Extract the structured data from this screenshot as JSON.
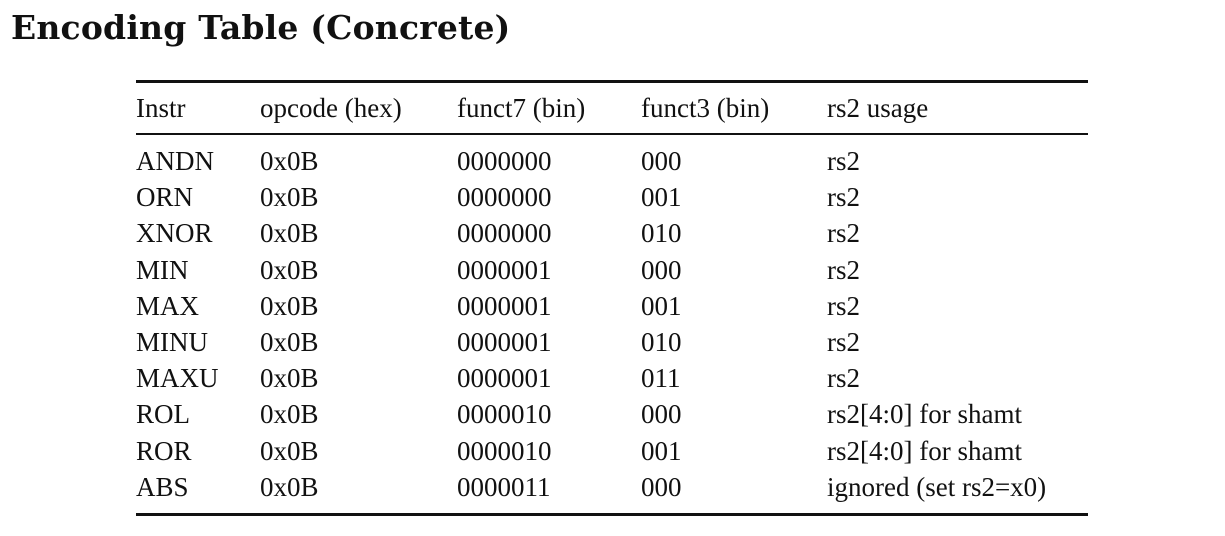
{
  "heading": "Encoding Table (Concrete)",
  "table": {
    "headers": [
      "Instr",
      "opcode (hex)",
      "funct7 (bin)",
      "funct3 (bin)",
      "rs2 usage"
    ],
    "rows": [
      [
        "ANDN",
        "0x0B",
        "0000000",
        "000",
        "rs2"
      ],
      [
        "ORN",
        "0x0B",
        "0000000",
        "001",
        "rs2"
      ],
      [
        "XNOR",
        "0x0B",
        "0000000",
        "010",
        "rs2"
      ],
      [
        "MIN",
        "0x0B",
        "0000001",
        "000",
        "rs2"
      ],
      [
        "MAX",
        "0x0B",
        "0000001",
        "001",
        "rs2"
      ],
      [
        "MINU",
        "0x0B",
        "0000001",
        "010",
        "rs2"
      ],
      [
        "MAXU",
        "0x0B",
        "0000001",
        "011",
        "rs2"
      ],
      [
        "ROL",
        "0x0B",
        "0000010",
        "000",
        "rs2[4:0] for shamt"
      ],
      [
        "ROR",
        "0x0B",
        "0000010",
        "001",
        "rs2[4:0] for shamt"
      ],
      [
        "ABS",
        "0x0B",
        "0000011",
        "000",
        "ignored (set rs2=x0)"
      ]
    ]
  }
}
